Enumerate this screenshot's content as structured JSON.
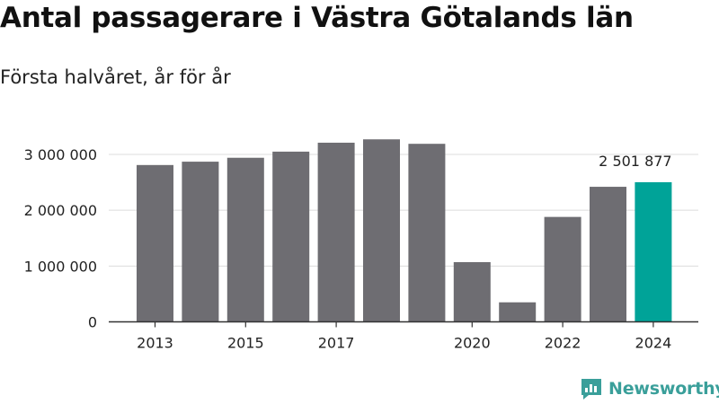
{
  "header": {
    "title": "Antal passagerare i Västra Götalands län",
    "subtitle": "Första halvåret, år för år"
  },
  "brand": {
    "name": "Newsworthy",
    "icon": "newsworthy-logo-icon",
    "color": "#3a9f9a"
  },
  "colors": {
    "bar": "#6e6d72",
    "highlight": "#00a398",
    "grid": "#dcdcdc",
    "axis": "#333333"
  },
  "chart_data": {
    "type": "bar",
    "categories": [
      "2013",
      "2014",
      "2015",
      "2016",
      "2017",
      "2018",
      "2019",
      "2020",
      "2021",
      "2022",
      "2023",
      "2024"
    ],
    "values": [
      2810000,
      2870000,
      2940000,
      3050000,
      3210000,
      3270000,
      3190000,
      1070000,
      350000,
      1880000,
      2420000,
      2501877
    ],
    "x_tick_labels": [
      "2013",
      "2015",
      "2017",
      "2020",
      "2022",
      "2024"
    ],
    "y_ticks": [
      0,
      1000000,
      2000000,
      3000000
    ],
    "y_tick_labels": [
      "0",
      "1 000 000",
      "2 000 000",
      "3 000 000"
    ],
    "ylim": [
      0,
      3600000
    ],
    "highlight_index": 11,
    "annotation": {
      "text": "2 501 877",
      "index": 11
    },
    "title": "Antal passagerare i Västra Götalands län",
    "subtitle": "Första halvåret, år för år",
    "xlabel": "",
    "ylabel": "",
    "grid": true,
    "legend": "none"
  }
}
